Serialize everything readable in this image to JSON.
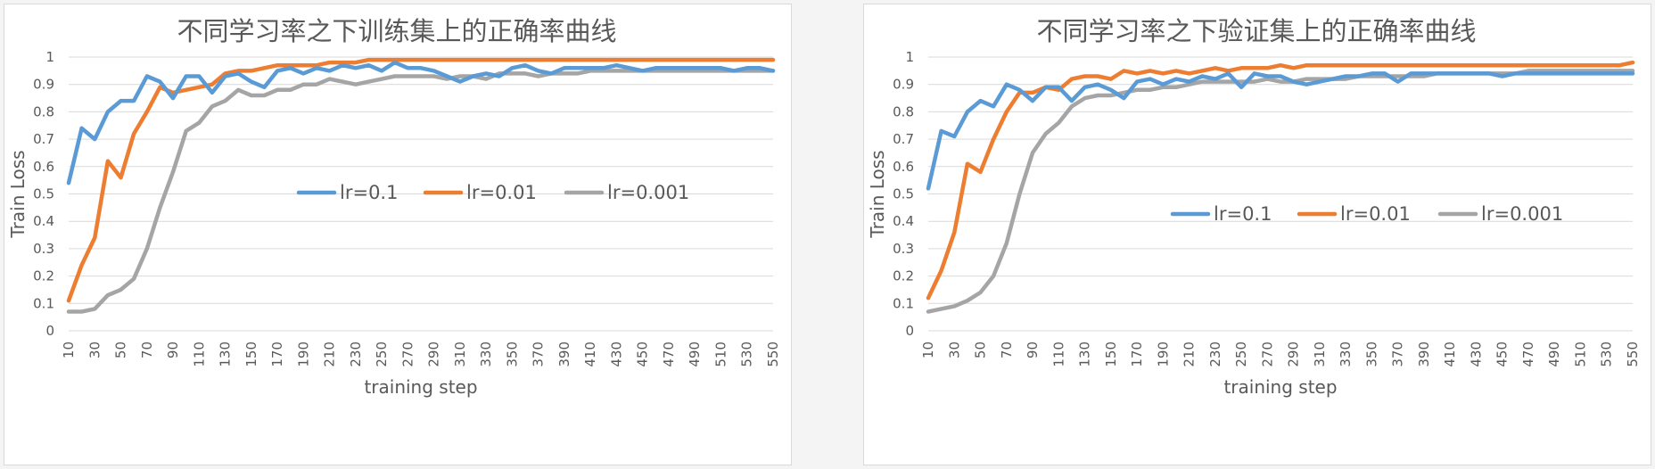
{
  "colors": {
    "lr_01": "#5b9bd5",
    "lr_001": "#ed7d31",
    "lr_0001": "#a5a5a5",
    "grid": "#d9d9d9",
    "text": "#595959"
  },
  "chart_data": [
    {
      "type": "line",
      "title": "不同学习率之下训练集上的正确率曲线",
      "xlabel": "training   step",
      "ylabel": "Train  Loss",
      "ylim": [
        0,
        1
      ],
      "yticks": [
        "0",
        "0.1",
        "0.2",
        "0.3",
        "0.4",
        "0.5",
        "0.6",
        "0.7",
        "0.8",
        "0.9",
        "1"
      ],
      "x": [
        10,
        20,
        30,
        40,
        50,
        60,
        70,
        80,
        90,
        100,
        110,
        120,
        130,
        140,
        150,
        160,
        170,
        180,
        190,
        200,
        210,
        220,
        230,
        240,
        250,
        260,
        270,
        280,
        290,
        300,
        310,
        320,
        330,
        340,
        350,
        360,
        370,
        380,
        390,
        400,
        410,
        420,
        430,
        440,
        450,
        460,
        470,
        480,
        490,
        500,
        510,
        520,
        530,
        540,
        550
      ],
      "xticks": [
        "10",
        "30",
        "50",
        "70",
        "90",
        "110",
        "130",
        "150",
        "170",
        "190",
        "210",
        "230",
        "250",
        "270",
        "290",
        "310",
        "330",
        "350",
        "370",
        "390",
        "410",
        "430",
        "450",
        "470",
        "490",
        "510",
        "530",
        "550"
      ],
      "legend": {
        "position": "center-right"
      },
      "series": [
        {
          "name": "lr=0.1",
          "values": [
            0.54,
            0.74,
            0.7,
            0.8,
            0.84,
            0.84,
            0.93,
            0.91,
            0.85,
            0.93,
            0.93,
            0.87,
            0.93,
            0.94,
            0.91,
            0.89,
            0.95,
            0.96,
            0.94,
            0.96,
            0.95,
            0.97,
            0.96,
            0.97,
            0.95,
            0.98,
            0.96,
            0.96,
            0.95,
            0.93,
            0.91,
            0.93,
            0.94,
            0.93,
            0.96,
            0.97,
            0.95,
            0.94,
            0.96,
            0.96,
            0.96,
            0.96,
            0.97,
            0.96,
            0.95,
            0.96,
            0.96,
            0.96,
            0.96,
            0.96,
            0.96,
            0.95,
            0.96,
            0.96,
            0.95
          ]
        },
        {
          "name": "lr=0.01",
          "values": [
            0.11,
            0.24,
            0.34,
            0.62,
            0.56,
            0.72,
            0.8,
            0.89,
            0.87,
            0.88,
            0.89,
            0.9,
            0.94,
            0.95,
            0.95,
            0.96,
            0.97,
            0.97,
            0.97,
            0.97,
            0.98,
            0.98,
            0.98,
            0.99,
            0.99,
            0.99,
            0.99,
            0.99,
            0.99,
            0.99,
            0.99,
            0.99,
            0.99,
            0.99,
            0.99,
            0.99,
            0.99,
            0.99,
            0.99,
            0.99,
            0.99,
            0.99,
            0.99,
            0.99,
            0.99,
            0.99,
            0.99,
            0.99,
            0.99,
            0.99,
            0.99,
            0.99,
            0.99,
            0.99,
            0.99
          ]
        },
        {
          "name": "lr=0.001",
          "values": [
            0.07,
            0.07,
            0.08,
            0.13,
            0.15,
            0.19,
            0.3,
            0.45,
            0.58,
            0.73,
            0.76,
            0.82,
            0.84,
            0.88,
            0.86,
            0.86,
            0.88,
            0.88,
            0.9,
            0.9,
            0.92,
            0.91,
            0.9,
            0.91,
            0.92,
            0.93,
            0.93,
            0.93,
            0.93,
            0.92,
            0.93,
            0.93,
            0.92,
            0.94,
            0.94,
            0.94,
            0.93,
            0.94,
            0.94,
            0.94,
            0.95,
            0.95,
            0.95,
            0.95,
            0.95,
            0.95,
            0.95,
            0.95,
            0.95,
            0.95,
            0.95,
            0.95,
            0.95,
            0.95,
            0.95
          ]
        }
      ]
    },
    {
      "type": "line",
      "title": "不同学习率之下验证集上的正确率曲线",
      "xlabel": "training   step",
      "ylabel": "Train  Loss",
      "ylim": [
        0,
        1
      ],
      "yticks": [
        "0",
        "0.1",
        "0.2",
        "0.3",
        "0.4",
        "0.5",
        "0.6",
        "0.7",
        "0.8",
        "0.9",
        "1"
      ],
      "x": [
        10,
        20,
        30,
        40,
        50,
        60,
        70,
        80,
        90,
        100,
        110,
        120,
        130,
        140,
        150,
        160,
        170,
        180,
        190,
        200,
        210,
        220,
        230,
        240,
        250,
        260,
        270,
        280,
        290,
        300,
        310,
        320,
        330,
        340,
        350,
        360,
        370,
        380,
        390,
        400,
        410,
        420,
        430,
        440,
        450,
        460,
        470,
        480,
        490,
        500,
        510,
        520,
        530,
        540,
        550
      ],
      "xticks": [
        "10",
        "30",
        "50",
        "70",
        "90",
        "110",
        "130",
        "150",
        "170",
        "190",
        "210",
        "230",
        "250",
        "270",
        "290",
        "310",
        "330",
        "350",
        "370",
        "390",
        "410",
        "430",
        "450",
        "470",
        "490",
        "510",
        "530",
        "550"
      ],
      "legend": {
        "position": "center-right"
      },
      "series": [
        {
          "name": "lr=0.1",
          "values": [
            0.52,
            0.73,
            0.71,
            0.8,
            0.84,
            0.82,
            0.9,
            0.88,
            0.84,
            0.89,
            0.89,
            0.84,
            0.89,
            0.9,
            0.88,
            0.85,
            0.91,
            0.92,
            0.9,
            0.92,
            0.91,
            0.93,
            0.92,
            0.94,
            0.89,
            0.94,
            0.93,
            0.93,
            0.91,
            0.9,
            0.91,
            0.92,
            0.93,
            0.93,
            0.94,
            0.94,
            0.91,
            0.94,
            0.94,
            0.94,
            0.94,
            0.94,
            0.94,
            0.94,
            0.93,
            0.94,
            0.94,
            0.94,
            0.94,
            0.94,
            0.94,
            0.94,
            0.94,
            0.94,
            0.94
          ]
        },
        {
          "name": "lr=0.01",
          "values": [
            0.12,
            0.22,
            0.36,
            0.61,
            0.58,
            0.7,
            0.8,
            0.87,
            0.87,
            0.89,
            0.88,
            0.92,
            0.93,
            0.93,
            0.92,
            0.95,
            0.94,
            0.95,
            0.94,
            0.95,
            0.94,
            0.95,
            0.96,
            0.95,
            0.96,
            0.96,
            0.96,
            0.97,
            0.96,
            0.97,
            0.97,
            0.97,
            0.97,
            0.97,
            0.97,
            0.97,
            0.97,
            0.97,
            0.97,
            0.97,
            0.97,
            0.97,
            0.97,
            0.97,
            0.97,
            0.97,
            0.97,
            0.97,
            0.97,
            0.97,
            0.97,
            0.97,
            0.97,
            0.97,
            0.98
          ]
        },
        {
          "name": "lr=0.001",
          "values": [
            0.07,
            0.08,
            0.09,
            0.11,
            0.14,
            0.2,
            0.32,
            0.5,
            0.65,
            0.72,
            0.76,
            0.82,
            0.85,
            0.86,
            0.86,
            0.87,
            0.88,
            0.88,
            0.89,
            0.89,
            0.9,
            0.91,
            0.91,
            0.91,
            0.91,
            0.91,
            0.92,
            0.91,
            0.91,
            0.92,
            0.92,
            0.92,
            0.92,
            0.93,
            0.93,
            0.93,
            0.93,
            0.93,
            0.93,
            0.94,
            0.94,
            0.94,
            0.94,
            0.94,
            0.94,
            0.94,
            0.95,
            0.95,
            0.95,
            0.95,
            0.95,
            0.95,
            0.95,
            0.95,
            0.95
          ]
        }
      ]
    }
  ]
}
